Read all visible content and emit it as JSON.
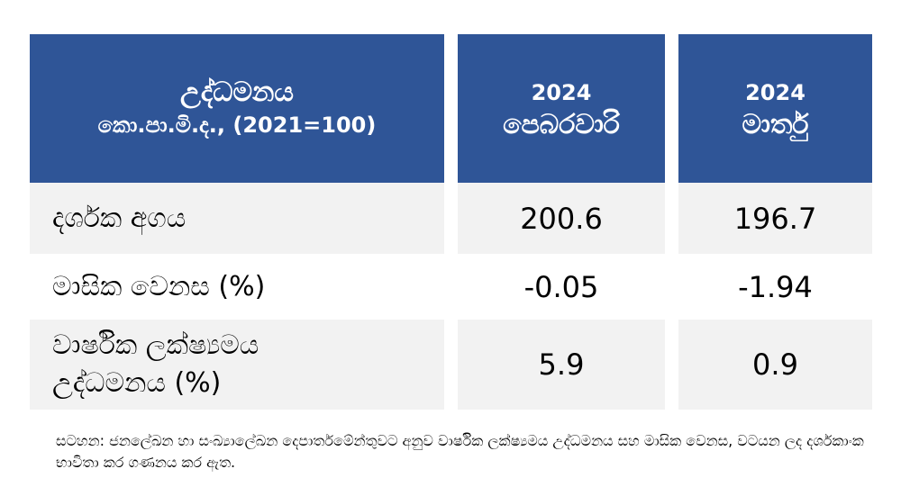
{
  "table": {
    "header": [
      [
        "උද්ධමනය",
        "කො.පා.මි.ද., (2021=100)"
      ],
      [
        "2024",
        "පෙබරවාරි"
      ],
      [
        "2024",
        "මාර්තු"
      ]
    ],
    "rows": [
      [
        "දර්ශක අගය",
        "200.6",
        "196.7"
      ],
      [
        "මාසික වෙනස (%)",
        "-0.05",
        "-1.94"
      ],
      [
        [
          "වාර්ෂික ලක්ෂ්‍යමය",
          "උද්ධමනය (%)"
        ],
        "5.9",
        "0.9"
      ]
    ]
  },
  "note": "සටහන: ජනලේඛන හා සංඛ්‍යාලේඛන දෙපාර්තමේන්තුවට අනුව වාර්ෂික ලක්ෂ්‍යමය උද්ධමනය සහ මාසික වෙනස, වටයන ලද දර්ශකාංක භාවිතා කර ගණනය කර ඇත."
}
